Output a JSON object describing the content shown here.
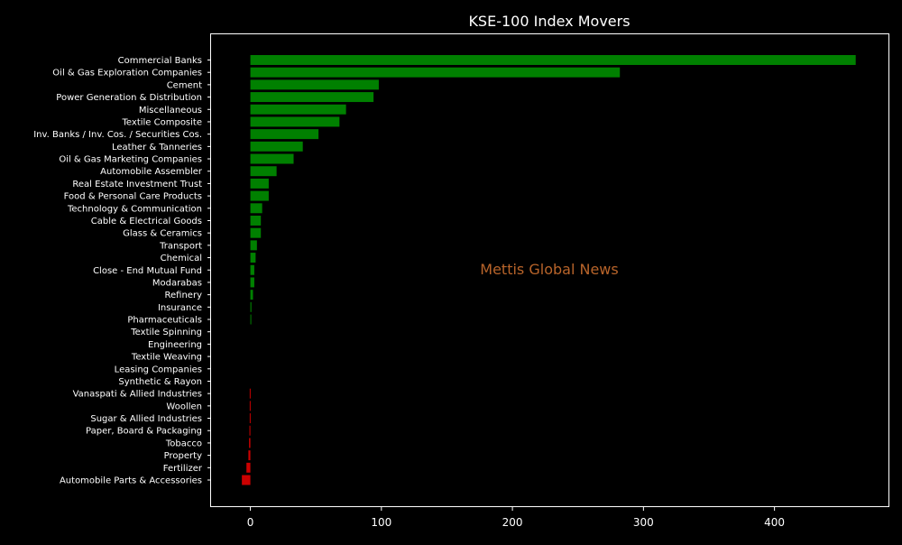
{
  "chart_data": {
    "type": "bar",
    "orientation": "horizontal",
    "title": "KSE-100 Index Movers",
    "xlabel": "",
    "ylabel": "",
    "watermark": "Mettis Global News",
    "xlim": [
      -30,
      487
    ],
    "xticks": [
      0,
      100,
      200,
      300,
      400
    ],
    "grid": false,
    "colors": {
      "background": "#000000",
      "text": "#ffffff",
      "positive": "#008000",
      "negative": "#cc0000",
      "watermark": "#b8642a"
    },
    "categories": [
      "Commercial Banks",
      "Oil & Gas Exploration Companies",
      "Cement",
      "Power Generation & Distribution",
      "Miscellaneous",
      "Textile Composite",
      "Inv. Banks / Inv. Cos. / Securities Cos.",
      "Leather & Tanneries",
      "Oil & Gas Marketing Companies",
      "Automobile Assembler",
      "Real Estate Investment Trust",
      "Food & Personal Care Products",
      "Technology & Communication",
      "Cable & Electrical Goods",
      "Glass & Ceramics",
      "Transport",
      "Chemical",
      "Close - End Mutual Fund",
      "Modarabas",
      "Refinery",
      "Insurance",
      "Pharmaceuticals",
      "Textile Spinning",
      "Engineering",
      "Textile Weaving",
      "Leasing Companies",
      "Synthetic & Rayon",
      "Vanaspati & Allied Industries",
      "Woollen",
      "Sugar & Allied Industries",
      "Paper, Board & Packaging",
      "Tobacco",
      "Property",
      "Fertilizer",
      "Automobile Parts & Accessories"
    ],
    "values": [
      462,
      282,
      98,
      94,
      73,
      68,
      52,
      40,
      33,
      20,
      14,
      14,
      9,
      8,
      8,
      5,
      4,
      3,
      3,
      2,
      0.8,
      0.6,
      0,
      0,
      0,
      0,
      0,
      -0.5,
      -0.5,
      -0.5,
      -0.7,
      -1,
      -1.5,
      -3,
      -6.5
    ]
  }
}
